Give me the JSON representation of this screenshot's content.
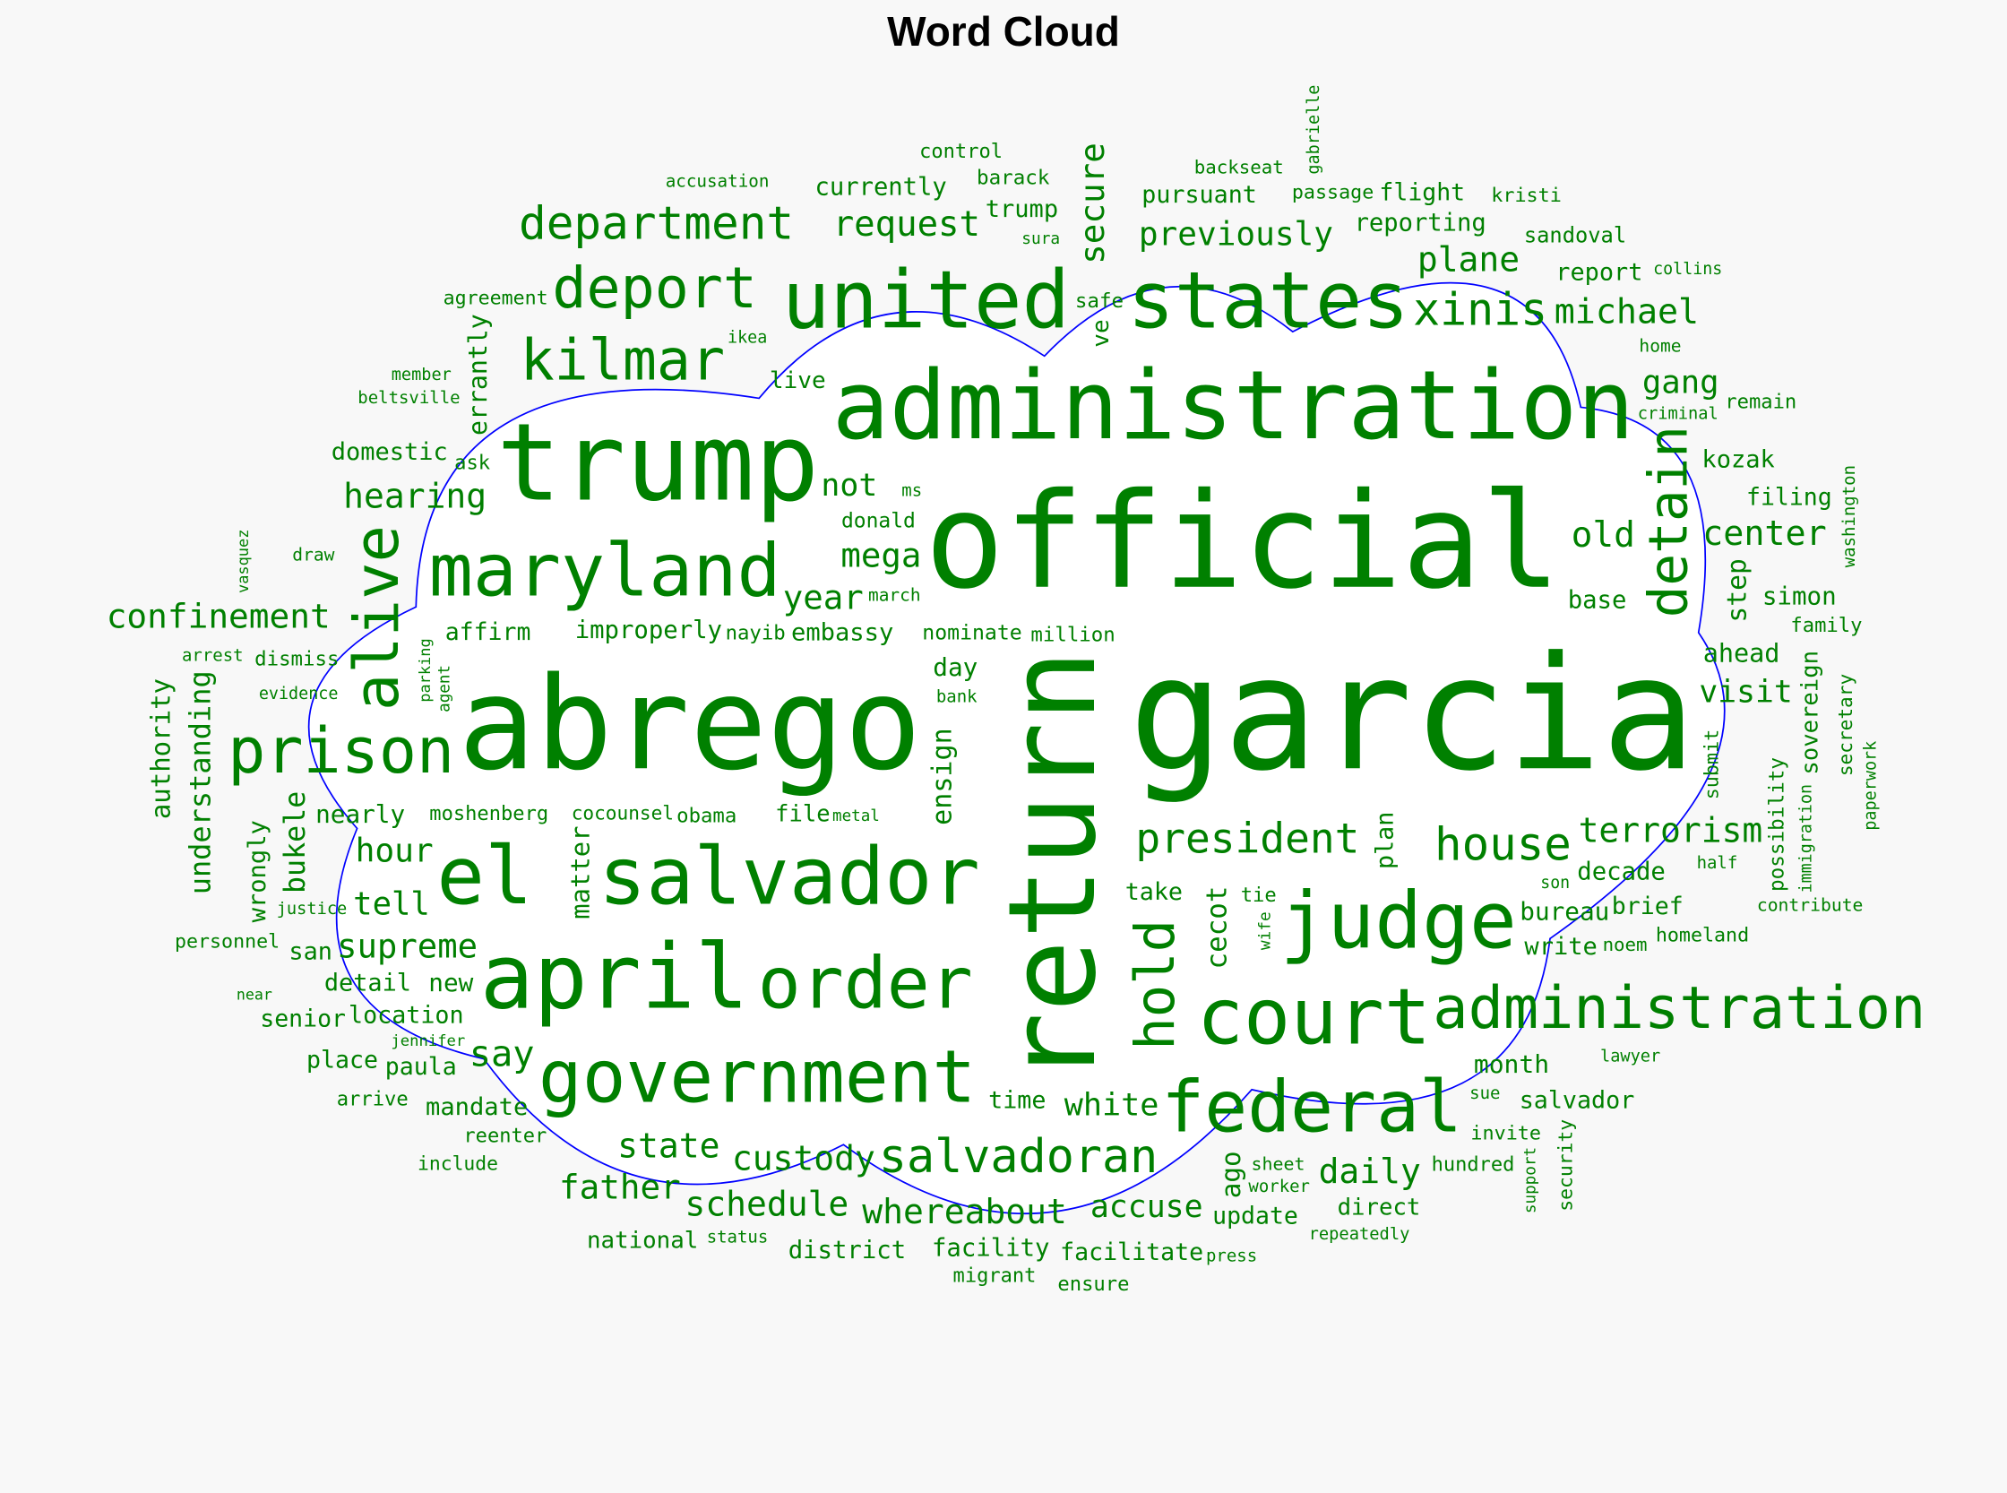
{
  "title": "Word Cloud",
  "chart_data": {
    "type": "wordcloud",
    "title": "Word Cloud",
    "colors": {
      "words": "#008000",
      "outline": "#0000ff",
      "cloud_fill": "#ffffff",
      "background": "#f8f8f8"
    },
    "shape": "cloud",
    "words": [
      "abrego",
      "garcia",
      "official",
      "return",
      "trump",
      "administration",
      "united",
      "states",
      "maryland",
      "el",
      "salvador",
      "april",
      "order",
      "government",
      "court",
      "judge",
      "federal",
      "administration",
      "prison",
      "alive",
      "kilmar",
      "deport",
      "department",
      "hold",
      "salvadoran",
      "xinis",
      "previously",
      "house",
      "detain",
      "custody",
      "whereabout",
      "father",
      "schedule",
      "state",
      "daily",
      "president",
      "michael",
      "center",
      "old",
      "terrorism",
      "plane",
      "gang",
      "mega",
      "hearing",
      "not",
      "confinement",
      "supreme",
      "tell",
      "hour",
      "year",
      "request",
      "visit",
      "secure",
      "embassy",
      "errantly",
      "understanding",
      "ensign",
      "matter",
      "bukele",
      "authority",
      "wrongly",
      "parking",
      "vasquez",
      "agent",
      "immigration",
      "paperwork",
      "cecot",
      "security",
      "ago",
      "wife",
      "ve",
      "gabrielle",
      "step",
      "washington",
      "possibility",
      "plan",
      "submit",
      "sovereign",
      "secretary",
      "support",
      "agreement",
      "ikea",
      "ask",
      "beltsville",
      "draw",
      "dismiss",
      "nominate",
      "cocounsel",
      "affirm",
      "file",
      "domestic",
      "obama",
      "currently",
      "sura",
      "live",
      "control",
      "pursuant",
      "safe",
      "donald",
      "barack",
      "million",
      "passage",
      "sandoval",
      "kristi",
      "report",
      "collins",
      "home",
      "flight",
      "trump",
      "accusation",
      "ms",
      "backseat",
      "reporting",
      "base",
      "member",
      "nayib",
      "bank",
      "march",
      "day",
      "kozak",
      "remain",
      "criminal",
      "filing",
      "simon",
      "family",
      "ahead",
      "decade",
      "son",
      "evidence",
      "arrest",
      "paula",
      "metal",
      "take",
      "bureau",
      "personnel",
      "location",
      "improperly",
      "facility",
      "sheet",
      "homeland",
      "half",
      "noem",
      "nearly",
      "worker",
      "contribute",
      "brief",
      "detail",
      "tie",
      "hundred",
      "lawyer",
      "update",
      "justice",
      "new",
      "moshenberg",
      "mandate",
      "san",
      "reenter",
      "include",
      "national",
      "direct",
      "invite",
      "senior",
      "near",
      "place",
      "salvador",
      "write",
      "migrant",
      "arrive",
      "ensure",
      "jennifer",
      "time",
      "month",
      "sue",
      "say",
      "repeatedly",
      "district",
      "white",
      "facilitate",
      "press",
      "status",
      "accuse"
    ]
  }
}
